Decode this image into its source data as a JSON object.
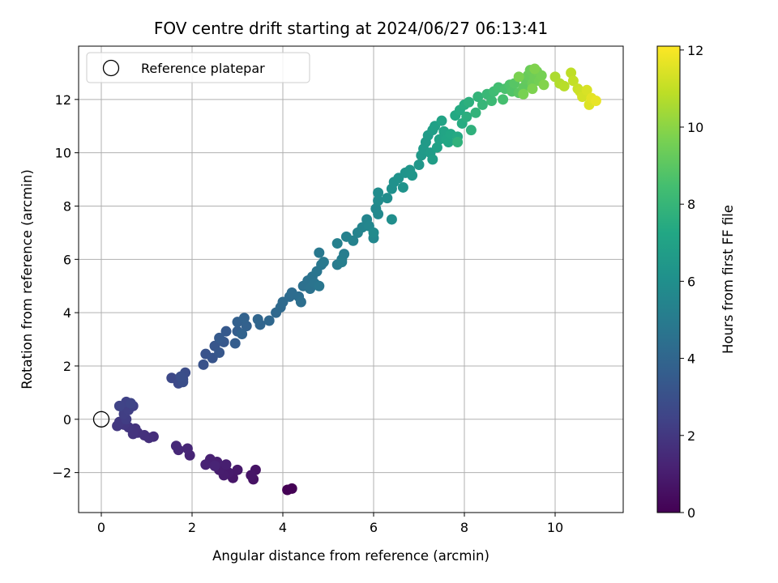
{
  "chart_data": {
    "type": "scatter",
    "title": "FOV centre drift starting at 2024/06/27 06:13:41",
    "xlabel": "Angular distance from reference (arcmin)",
    "ylabel": "Rotation from reference (arcmin)",
    "xlim": [
      -0.5,
      11.5
    ],
    "ylim": [
      -3.5,
      14.0
    ],
    "xticks": [
      "0",
      "2",
      "4",
      "6",
      "8",
      "10"
    ],
    "yticks": [
      "−2",
      "0",
      "2",
      "4",
      "6",
      "8",
      "10",
      "12"
    ],
    "grid": true,
    "legend": {
      "position": "top-left",
      "entries": [
        "Reference platepar"
      ]
    },
    "reference_point": {
      "x": 0,
      "y": 0
    },
    "colorbar": {
      "label": "Hours from first FF file",
      "range": [
        0,
        12.1
      ],
      "ticks": [
        "0",
        "2",
        "4",
        "6",
        "8",
        "10",
        "12"
      ],
      "colormap": "viridis"
    },
    "series": [
      {
        "points": [
          [
            4.1,
            -2.65,
            0.0
          ],
          [
            4.2,
            -2.6,
            0.05
          ],
          [
            3.35,
            -2.25,
            0.6
          ],
          [
            3.4,
            -1.9,
            0.65
          ],
          [
            3.3,
            -2.1,
            0.7
          ],
          [
            2.9,
            -2.2,
            0.8
          ],
          [
            3.0,
            -1.9,
            0.85
          ],
          [
            2.8,
            -2.0,
            0.9
          ],
          [
            2.7,
            -2.1,
            0.95
          ],
          [
            2.6,
            -1.9,
            1.0
          ],
          [
            2.75,
            -1.7,
            1.05
          ],
          [
            2.55,
            -1.6,
            1.1
          ],
          [
            2.4,
            -1.5,
            1.15
          ],
          [
            2.3,
            -1.7,
            1.2
          ],
          [
            2.5,
            -1.75,
            1.25
          ],
          [
            1.95,
            -1.35,
            1.3
          ],
          [
            1.9,
            -1.1,
            1.35
          ],
          [
            1.7,
            -1.15,
            1.4
          ],
          [
            1.65,
            -1.0,
            1.45
          ],
          [
            1.15,
            -0.65,
            1.6
          ],
          [
            1.05,
            -0.7,
            1.65
          ],
          [
            0.95,
            -0.6,
            1.7
          ],
          [
            0.8,
            -0.5,
            1.75
          ],
          [
            0.75,
            -0.35,
            1.8
          ],
          [
            0.7,
            -0.55,
            1.85
          ],
          [
            0.6,
            -0.3,
            1.9
          ],
          [
            0.5,
            -0.2,
            1.95
          ],
          [
            0.35,
            -0.25,
            2.0
          ],
          [
            0.4,
            -0.1,
            2.05
          ],
          [
            0.55,
            0.0,
            2.2
          ],
          [
            0.5,
            0.2,
            2.25
          ],
          [
            0.6,
            0.35,
            2.3
          ],
          [
            0.7,
            0.5,
            2.35
          ],
          [
            0.55,
            0.65,
            2.4
          ],
          [
            0.4,
            0.5,
            2.45
          ],
          [
            0.65,
            0.6,
            2.5
          ],
          [
            1.55,
            1.55,
            2.7
          ],
          [
            1.7,
            1.35,
            2.75
          ],
          [
            1.8,
            1.5,
            2.8
          ],
          [
            1.85,
            1.75,
            2.85
          ],
          [
            1.8,
            1.4,
            2.9
          ],
          [
            1.75,
            1.6,
            2.95
          ],
          [
            2.25,
            2.05,
            3.1
          ],
          [
            2.3,
            2.45,
            3.15
          ],
          [
            2.45,
            2.3,
            3.2
          ],
          [
            2.5,
            2.75,
            3.25
          ],
          [
            2.6,
            2.5,
            3.3
          ],
          [
            2.7,
            2.9,
            3.35
          ],
          [
            2.75,
            3.3,
            3.4
          ],
          [
            2.6,
            3.05,
            3.45
          ],
          [
            2.95,
            2.85,
            3.6
          ],
          [
            3.0,
            3.3,
            3.65
          ],
          [
            3.0,
            3.65,
            3.7
          ],
          [
            3.2,
            3.5,
            3.75
          ],
          [
            3.15,
            3.8,
            3.8
          ],
          [
            3.1,
            3.2,
            3.85
          ],
          [
            3.5,
            3.55,
            3.95
          ],
          [
            3.45,
            3.75,
            4.0
          ],
          [
            3.7,
            3.7,
            4.05
          ],
          [
            3.85,
            4.0,
            4.1
          ],
          [
            3.95,
            4.2,
            4.15
          ],
          [
            4.0,
            4.4,
            4.2
          ],
          [
            4.15,
            4.6,
            4.25
          ],
          [
            4.2,
            4.75,
            4.3
          ],
          [
            4.35,
            4.6,
            4.35
          ],
          [
            4.4,
            4.4,
            4.4
          ],
          [
            4.45,
            5.0,
            4.45
          ],
          [
            4.55,
            5.2,
            4.5
          ],
          [
            4.6,
            4.9,
            4.55
          ],
          [
            4.65,
            5.35,
            4.6
          ],
          [
            4.7,
            5.1,
            4.65
          ],
          [
            4.75,
            5.55,
            4.7
          ],
          [
            4.8,
            5.0,
            4.75
          ],
          [
            4.85,
            5.8,
            4.8
          ],
          [
            4.8,
            6.25,
            4.85
          ],
          [
            4.9,
            5.9,
            4.9
          ],
          [
            5.2,
            5.8,
            5.0
          ],
          [
            5.3,
            6.0,
            5.05
          ],
          [
            5.35,
            6.2,
            5.1
          ],
          [
            5.3,
            5.9,
            5.15
          ],
          [
            5.2,
            6.6,
            5.25
          ],
          [
            5.4,
            6.85,
            5.3
          ],
          [
            5.55,
            6.7,
            5.35
          ],
          [
            5.65,
            7.0,
            5.4
          ],
          [
            5.75,
            7.2,
            5.45
          ],
          [
            5.85,
            7.5,
            5.5
          ],
          [
            5.9,
            7.25,
            5.55
          ],
          [
            6.0,
            6.8,
            5.6
          ],
          [
            6.05,
            7.9,
            5.65
          ],
          [
            6.1,
            7.7,
            5.7
          ],
          [
            6.0,
            7.0,
            5.75
          ],
          [
            6.1,
            8.2,
            5.8
          ],
          [
            6.1,
            8.5,
            5.85
          ],
          [
            6.3,
            8.3,
            5.9
          ],
          [
            6.4,
            7.5,
            5.95
          ],
          [
            6.4,
            8.65,
            6.05
          ],
          [
            6.45,
            8.9,
            6.1
          ],
          [
            6.55,
            9.05,
            6.15
          ],
          [
            6.65,
            8.7,
            6.2
          ],
          [
            6.7,
            9.25,
            6.25
          ],
          [
            6.8,
            9.35,
            6.3
          ],
          [
            6.85,
            9.15,
            6.35
          ],
          [
            7.0,
            9.55,
            6.4
          ],
          [
            7.05,
            9.9,
            6.5
          ],
          [
            7.1,
            10.15,
            6.55
          ],
          [
            7.15,
            10.4,
            6.6
          ],
          [
            7.2,
            10.65,
            6.65
          ],
          [
            7.25,
            10.0,
            6.7
          ],
          [
            7.3,
            9.75,
            6.75
          ],
          [
            7.3,
            10.85,
            6.8
          ],
          [
            7.35,
            11.0,
            6.9
          ],
          [
            7.4,
            10.2,
            6.95
          ],
          [
            7.45,
            10.5,
            7.0
          ],
          [
            7.5,
            11.2,
            7.05
          ],
          [
            7.55,
            10.8,
            7.1
          ],
          [
            7.6,
            10.5,
            7.15
          ],
          [
            7.65,
            10.4,
            7.2
          ],
          [
            7.7,
            10.7,
            7.25
          ],
          [
            7.8,
            11.4,
            7.3
          ],
          [
            7.85,
            10.6,
            7.35
          ],
          [
            7.9,
            11.6,
            7.4
          ],
          [
            7.95,
            11.1,
            7.45
          ],
          [
            8.0,
            11.8,
            7.5
          ],
          [
            8.05,
            11.35,
            7.6
          ],
          [
            8.1,
            11.9,
            7.7
          ],
          [
            8.15,
            10.85,
            7.75
          ],
          [
            7.85,
            10.4,
            7.8
          ],
          [
            8.25,
            11.5,
            7.85
          ],
          [
            8.3,
            12.1,
            7.9
          ],
          [
            8.4,
            11.8,
            8.0
          ],
          [
            8.5,
            12.2,
            8.1
          ],
          [
            8.6,
            11.95,
            8.2
          ],
          [
            8.65,
            12.3,
            8.3
          ],
          [
            8.75,
            12.45,
            8.4
          ],
          [
            8.85,
            12.0,
            8.5
          ],
          [
            8.9,
            12.4,
            8.6
          ],
          [
            9.0,
            12.55,
            8.7
          ],
          [
            9.05,
            12.3,
            8.8
          ],
          [
            9.1,
            12.6,
            8.9
          ],
          [
            9.2,
            12.25,
            9.0
          ],
          [
            9.3,
            12.45,
            9.1
          ],
          [
            9.35,
            12.75,
            9.2
          ],
          [
            9.4,
            12.9,
            9.3
          ],
          [
            9.45,
            13.1,
            9.35
          ],
          [
            9.5,
            12.6,
            9.4
          ],
          [
            9.55,
            12.85,
            9.45
          ],
          [
            9.6,
            13.05,
            9.5
          ],
          [
            9.65,
            12.7,
            9.55
          ],
          [
            9.7,
            12.9,
            9.6
          ],
          [
            9.3,
            12.2,
            9.65
          ],
          [
            9.2,
            12.85,
            9.7
          ],
          [
            9.5,
            12.4,
            9.75
          ],
          [
            9.55,
            13.15,
            9.8
          ],
          [
            9.75,
            12.55,
            9.85
          ],
          [
            10.0,
            12.85,
            10.6
          ],
          [
            10.1,
            12.6,
            10.7
          ],
          [
            10.2,
            12.5,
            10.8
          ],
          [
            10.35,
            13.0,
            10.9
          ],
          [
            10.4,
            12.7,
            11.0
          ],
          [
            10.5,
            12.4,
            11.1
          ],
          [
            10.55,
            12.3,
            11.2
          ],
          [
            10.6,
            12.1,
            11.3
          ],
          [
            10.7,
            12.35,
            11.4
          ],
          [
            10.75,
            11.8,
            11.5
          ],
          [
            10.8,
            12.05,
            11.6
          ],
          [
            10.9,
            11.95,
            11.7
          ]
        ]
      }
    ]
  }
}
